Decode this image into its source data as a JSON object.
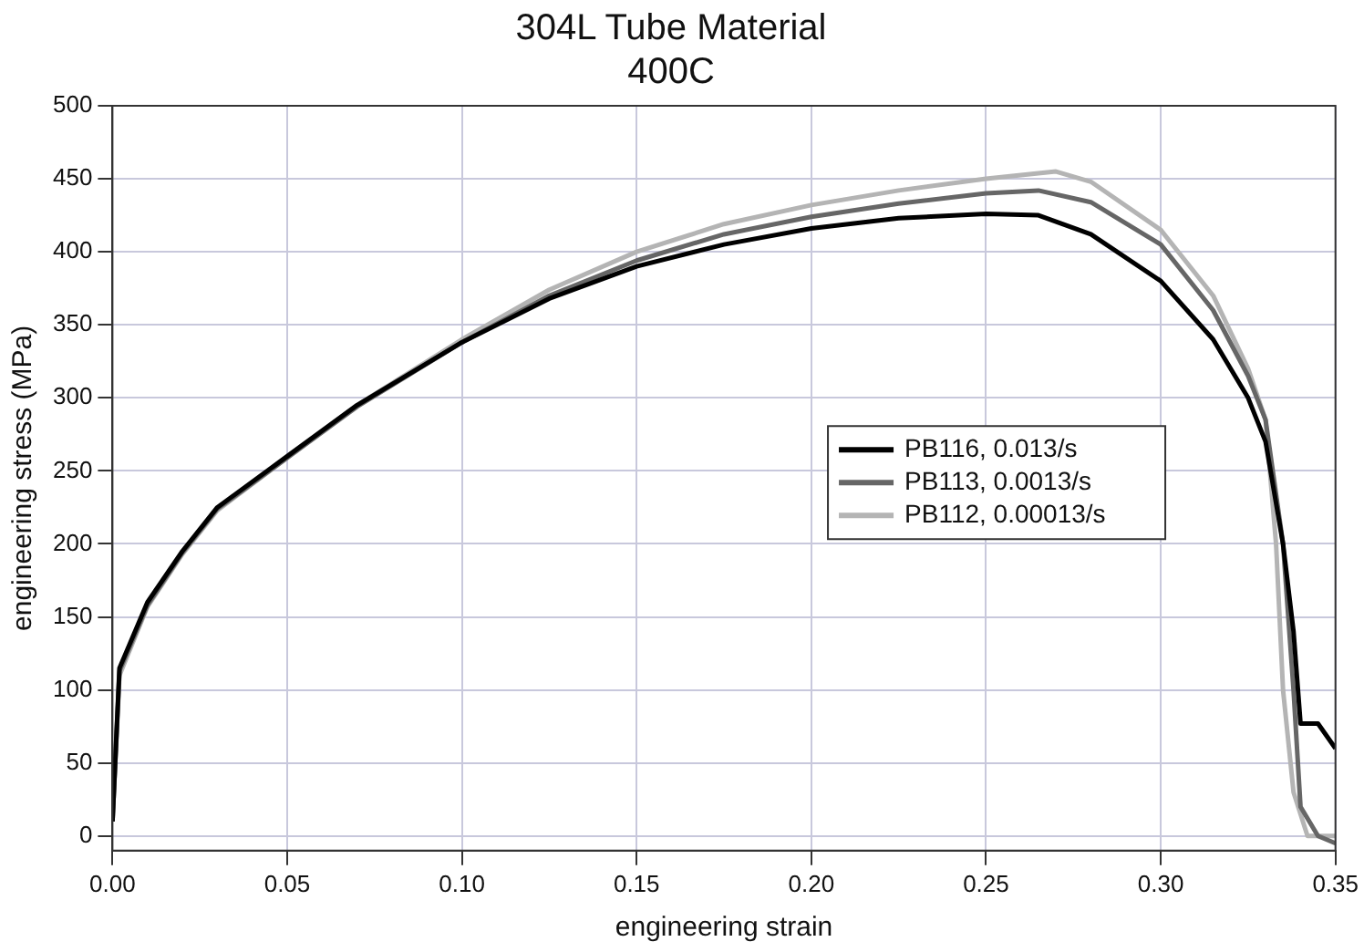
{
  "chart_data": {
    "type": "line",
    "title": [
      "304L Tube Material",
      "400C"
    ],
    "xlabel": "engineering strain",
    "ylabel": "engineering stress (MPa)",
    "xlim": [
      0,
      0.35
    ],
    "ylim": [
      -10,
      500
    ],
    "xticks": [
      {
        "value": 0,
        "label": "0.00"
      },
      {
        "value": 0.05,
        "label": "0.05"
      },
      {
        "value": 0.1,
        "label": "0.10"
      },
      {
        "value": 0.15,
        "label": "0.15"
      },
      {
        "value": 0.2,
        "label": "0.20"
      },
      {
        "value": 0.25,
        "label": "0.25"
      },
      {
        "value": 0.3,
        "label": "0.30"
      },
      {
        "value": 0.35,
        "label": "0.35"
      }
    ],
    "yticks": [
      0,
      50,
      100,
      150,
      200,
      250,
      300,
      350,
      400,
      450,
      500
    ],
    "grid": true,
    "legend": "right",
    "marker": "none",
    "line_style": "solid",
    "series": [
      {
        "name": "PB116, 0.013/s",
        "color": "#000000",
        "x": [
          0,
          0.002,
          0.01,
          0.02,
          0.03,
          0.05,
          0.07,
          0.1,
          0.125,
          0.15,
          0.175,
          0.2,
          0.225,
          0.25,
          0.265,
          0.28,
          0.3,
          0.315,
          0.325,
          0.33,
          0.335,
          0.338,
          0.34,
          0.345,
          0.35
        ],
        "values": [
          10,
          115,
          160,
          195,
          225,
          260,
          295,
          338,
          368,
          390,
          405,
          416,
          423,
          426,
          425,
          412,
          380,
          340,
          300,
          270,
          200,
          140,
          77,
          77,
          60
        ]
      },
      {
        "name": "PB113, 0.0013/s",
        "color": "#666666",
        "x": [
          0,
          0.002,
          0.01,
          0.02,
          0.03,
          0.05,
          0.07,
          0.1,
          0.125,
          0.15,
          0.175,
          0.2,
          0.225,
          0.25,
          0.265,
          0.28,
          0.3,
          0.315,
          0.325,
          0.33,
          0.335,
          0.338,
          0.34,
          0.345,
          0.35
        ],
        "values": [
          10,
          113,
          158,
          194,
          224,
          259,
          294,
          338,
          370,
          394,
          412,
          424,
          433,
          440,
          442,
          434,
          405,
          360,
          315,
          285,
          200,
          100,
          20,
          0,
          -5
        ]
      },
      {
        "name": "PB112, 0.00013/s",
        "color": "#b4b4b4",
        "x": [
          0,
          0.002,
          0.01,
          0.02,
          0.03,
          0.05,
          0.07,
          0.1,
          0.125,
          0.15,
          0.175,
          0.2,
          0.225,
          0.25,
          0.27,
          0.28,
          0.3,
          0.315,
          0.325,
          0.33,
          0.333,
          0.335,
          0.338,
          0.342,
          0.35
        ],
        "values": [
          10,
          110,
          157,
          193,
          223,
          259,
          295,
          340,
          374,
          400,
          419,
          432,
          442,
          450,
          455,
          448,
          415,
          370,
          320,
          285,
          200,
          100,
          30,
          0,
          0
        ]
      }
    ]
  }
}
